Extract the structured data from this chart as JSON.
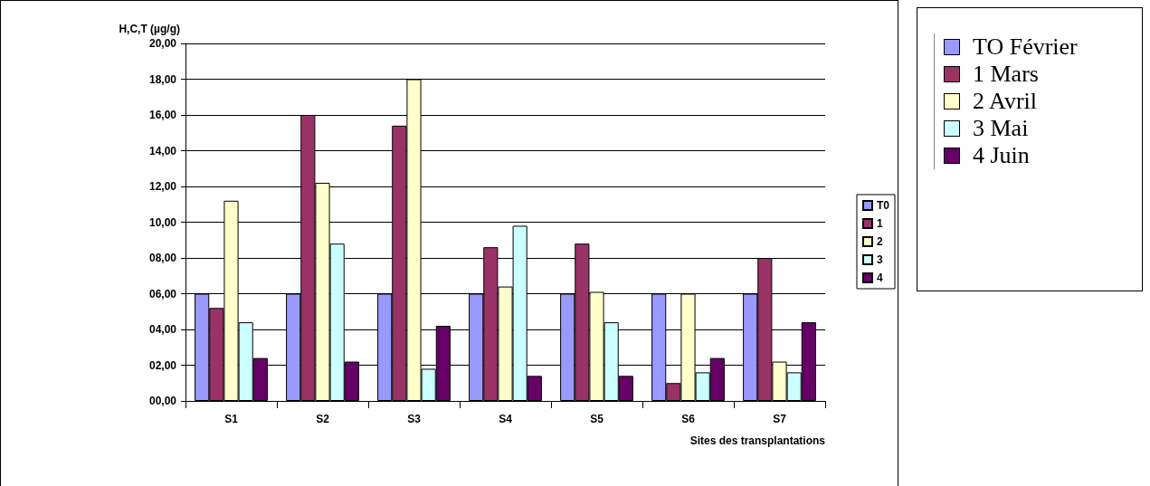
{
  "chart_data": {
    "type": "bar",
    "ylabel": "H,C,T (µg/g)",
    "xlabel": "Sites des transplantations",
    "categories": [
      "S1",
      "S2",
      "S3",
      "S4",
      "S5",
      "S6",
      "S7"
    ],
    "series": [
      {
        "name": "T0",
        "color": "#9999ff",
        "values": [
          6.0,
          6.0,
          6.0,
          6.0,
          6.0,
          6.0,
          6.0
        ]
      },
      {
        "name": "1",
        "color": "#993366",
        "values": [
          5.2,
          16.0,
          15.4,
          8.6,
          8.8,
          1.0,
          8.0
        ]
      },
      {
        "name": "2",
        "color": "#ffffcc",
        "values": [
          11.2,
          12.2,
          18.0,
          6.4,
          6.1,
          6.0,
          2.2
        ]
      },
      {
        "name": "3",
        "color": "#ccffff",
        "values": [
          4.4,
          8.8,
          1.8,
          9.8,
          4.4,
          1.6,
          1.6
        ]
      },
      {
        "name": "4",
        "color": "#660066",
        "values": [
          2.4,
          2.2,
          4.2,
          1.4,
          1.4,
          2.4,
          4.4
        ]
      }
    ],
    "ylim": [
      0,
      20
    ],
    "yticks": [
      {
        "value": 0,
        "label": "00,00"
      },
      {
        "value": 2,
        "label": "02,00"
      },
      {
        "value": 4,
        "label": "04,00"
      },
      {
        "value": 6,
        "label": "06,00"
      },
      {
        "value": 8,
        "label": "08,00"
      },
      {
        "value": 10,
        "label": "10,00"
      },
      {
        "value": 12,
        "label": "12,00"
      },
      {
        "value": 14,
        "label": "14,00"
      },
      {
        "value": 16,
        "label": "16,00"
      },
      {
        "value": 18,
        "label": "18,00"
      },
      {
        "value": 20,
        "label": "20,00"
      }
    ],
    "grid": "y",
    "legend": "right",
    "annotations": [
      "TO Février",
      "1 Mars",
      "2 Avril",
      "3 Mai",
      "4 Juin"
    ]
  }
}
